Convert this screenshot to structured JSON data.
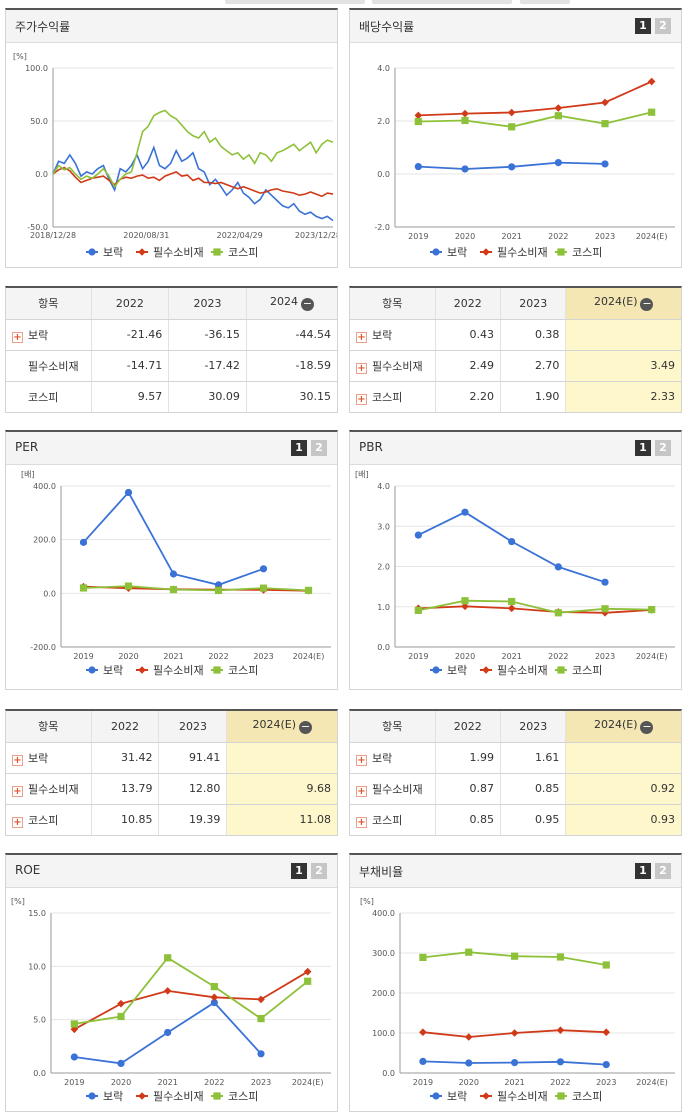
{
  "legend": [
    "보락",
    "필수소비재",
    "코스피"
  ],
  "colors": {
    "s0": "#3a72d6",
    "s1": "#d03a18",
    "s2": "#8ec13a"
  },
  "panels": [
    {
      "title": "주가수익률",
      "tabs": [],
      "chart_data": {
        "type": "line",
        "unit_label": "[%]",
        "ylim": [
          -50,
          100
        ],
        "yticks": [
          "100.0",
          "50.0",
          "0.0",
          "-50.0"
        ],
        "xticks": [
          "2018/12/28",
          "2020/08/31",
          "2022/04/29",
          "2023/12/28"
        ],
        "x": [
          0,
          0.02,
          0.04,
          0.06,
          0.08,
          0.1,
          0.12,
          0.14,
          0.16,
          0.18,
          0.2,
          0.22,
          0.24,
          0.26,
          0.28,
          0.3,
          0.32,
          0.34,
          0.36,
          0.38,
          0.4,
          0.42,
          0.44,
          0.46,
          0.48,
          0.5,
          0.52,
          0.54,
          0.56,
          0.58,
          0.6,
          0.62,
          0.64,
          0.66,
          0.68,
          0.7,
          0.72,
          0.74,
          0.76,
          0.78,
          0.8,
          0.82,
          0.84,
          0.86,
          0.88,
          0.9,
          0.92,
          0.94,
          0.96,
          0.98,
          1.0
        ],
        "series": [
          {
            "name": "보락",
            "values": [
              0,
              12,
              10,
              18,
              10,
              -2,
              2,
              0,
              5,
              8,
              -5,
              -15,
              5,
              2,
              8,
              18,
              5,
              12,
              25,
              8,
              5,
              10,
              22,
              12,
              15,
              20,
              5,
              2,
              -10,
              -5,
              -12,
              -20,
              -15,
              -8,
              -18,
              -22,
              -28,
              -24,
              -15,
              -20,
              -25,
              -30,
              -32,
              -28,
              -35,
              -38,
              -36,
              -40,
              -42,
              -40,
              -44
            ]
          },
          {
            "name": "필수소비재",
            "values": [
              0,
              4,
              6,
              3,
              -3,
              -8,
              -6,
              -4,
              -3,
              -2,
              -6,
              -10,
              -5,
              -3,
              -4,
              -2,
              -1,
              -4,
              -3,
              -6,
              -2,
              0,
              2,
              -2,
              -1,
              -6,
              -4,
              -8,
              -8,
              -9,
              -8,
              -10,
              -12,
              -14,
              -12,
              -14,
              -16,
              -18,
              -17,
              -15,
              -14,
              -16,
              -17,
              -18,
              -20,
              -19,
              -17,
              -19,
              -21,
              -18,
              -19
            ]
          },
          {
            "name": "코스피",
            "values": [
              0,
              8,
              4,
              6,
              0,
              -5,
              -2,
              -4,
              0,
              5,
              -2,
              -12,
              -5,
              0,
              2,
              20,
              40,
              45,
              55,
              58,
              60,
              55,
              52,
              46,
              40,
              36,
              34,
              40,
              30,
              34,
              26,
              22,
              18,
              20,
              14,
              18,
              10,
              20,
              18,
              12,
              20,
              22,
              25,
              28,
              22,
              26,
              30,
              20,
              28,
              32,
              30
            ]
          }
        ]
      }
    },
    {
      "title": "배당수익률",
      "tabs": [
        "1",
        "2"
      ],
      "chart_data": {
        "type": "line",
        "unit_label": "",
        "ylim": [
          -2,
          4
        ],
        "yticks": [
          "4.0",
          "2.0",
          "0.0",
          "-2.0"
        ],
        "xticks": [
          "2019",
          "2020",
          "2021",
          "2022",
          "2023",
          "2024(E)"
        ],
        "series": [
          {
            "name": "보락",
            "values": [
              0.28,
              0.19,
              0.27,
              0.43,
              0.38,
              null
            ]
          },
          {
            "name": "필수소비재",
            "values": [
              2.21,
              2.28,
              2.32,
              2.49,
              2.7,
              3.49
            ]
          },
          {
            "name": "코스피",
            "values": [
              1.98,
              2.02,
              1.78,
              2.2,
              1.9,
              2.33
            ]
          }
        ]
      }
    },
    {
      "title": "PER",
      "tabs": [
        "1",
        "2"
      ],
      "chart_data": {
        "type": "line",
        "unit_label": "[배]",
        "ylim": [
          -200,
          400
        ],
        "yticks": [
          "400.0",
          "200.0",
          "0.0",
          "-200.0"
        ],
        "xticks": [
          "2019",
          "2020",
          "2021",
          "2022",
          "2023",
          "2024(E)"
        ],
        "series": [
          {
            "name": "보락",
            "values": [
              190,
              376,
              72,
              31.42,
              91.41,
              null
            ]
          },
          {
            "name": "필수소비재",
            "values": [
              25,
              19,
              15,
              13.79,
              12.8,
              9.68
            ]
          },
          {
            "name": "코스피",
            "values": [
              20,
              27,
              14,
              10.85,
              19.39,
              11.08
            ]
          }
        ]
      }
    },
    {
      "title": "PBR",
      "tabs": [
        "1",
        "2"
      ],
      "chart_data": {
        "type": "line",
        "unit_label": "[배]",
        "ylim": [
          0,
          4
        ],
        "yticks": [
          "4.0",
          "3.0",
          "2.0",
          "1.0",
          "0.0"
        ],
        "xticks": [
          "2019",
          "2020",
          "2021",
          "2022",
          "2023",
          "2024(E)"
        ],
        "series": [
          {
            "name": "보락",
            "values": [
              2.78,
              3.35,
              2.62,
              1.99,
              1.61,
              null
            ]
          },
          {
            "name": "필수소비재",
            "values": [
              0.96,
              1.01,
              0.96,
              0.87,
              0.85,
              0.92
            ]
          },
          {
            "name": "코스피",
            "values": [
              0.91,
              1.15,
              1.13,
              0.85,
              0.95,
              0.93
            ]
          }
        ]
      }
    },
    {
      "title": "ROE",
      "tabs": [
        "1",
        "2"
      ],
      "chart_data": {
        "type": "line",
        "unit_label": "[%]",
        "ylim": [
          0,
          15
        ],
        "yticks": [
          "15.0",
          "10.0",
          "5.0",
          "0.0"
        ],
        "xticks": [
          "2019",
          "2020",
          "2021",
          "2022",
          "2023",
          "2024(E)"
        ],
        "series": [
          {
            "name": "보락",
            "values": [
              1.5,
              0.9,
              3.8,
              6.6,
              1.8,
              null
            ]
          },
          {
            "name": "필수소비재",
            "values": [
              4.1,
              6.5,
              7.7,
              7.1,
              6.9,
              9.5
            ]
          },
          {
            "name": "코스피",
            "values": [
              4.6,
              5.3,
              10.8,
              8.1,
              5.1,
              8.6
            ]
          }
        ]
      }
    },
    {
      "title": "부채비율",
      "tabs": [
        "1",
        "2"
      ],
      "chart_data": {
        "type": "line",
        "unit_label": "[%]",
        "ylim": [
          0,
          400
        ],
        "yticks": [
          "400.0",
          "300.0",
          "200.0",
          "100.0",
          "0.0"
        ],
        "xticks": [
          "2019",
          "2020",
          "2021",
          "2022",
          "2023",
          "2024(E)"
        ],
        "series": [
          {
            "name": "보락",
            "values": [
              29,
              25,
              26,
              28,
              21,
              null
            ]
          },
          {
            "name": "필수소비재",
            "values": [
              102,
              90,
              100,
              107,
              102,
              null
            ]
          },
          {
            "name": "코스피",
            "values": [
              289,
              302,
              292,
              290,
              270,
              null
            ]
          }
        ]
      }
    }
  ],
  "tables": [
    {
      "headers": [
        "항목",
        "2022",
        "2023",
        "2024"
      ],
      "rows": [
        {
          "name": "보락",
          "plus": true,
          "values": [
            "-21.46",
            "-36.15",
            "-44.54"
          ]
        },
        {
          "name": "필수소비재",
          "plus": false,
          "values": [
            "-14.71",
            "-17.42",
            "-18.59"
          ]
        },
        {
          "name": "코스피",
          "plus": false,
          "values": [
            "9.57",
            "30.09",
            "30.15"
          ]
        }
      ]
    },
    {
      "headers": [
        "항목",
        "2022",
        "2023",
        "2024(E)"
      ],
      "rows": [
        {
          "name": "보락",
          "plus": true,
          "values": [
            "0.43",
            "0.38",
            ""
          ]
        },
        {
          "name": "필수소비재",
          "plus": true,
          "values": [
            "2.49",
            "2.70",
            "3.49"
          ]
        },
        {
          "name": "코스피",
          "plus": true,
          "values": [
            "2.20",
            "1.90",
            "2.33"
          ]
        }
      ]
    },
    {
      "headers": [
        "항목",
        "2022",
        "2023",
        "2024(E)"
      ],
      "rows": [
        {
          "name": "보락",
          "plus": true,
          "values": [
            "31.42",
            "91.41",
            ""
          ]
        },
        {
          "name": "필수소비재",
          "plus": true,
          "values": [
            "13.79",
            "12.80",
            "9.68"
          ]
        },
        {
          "name": "코스피",
          "plus": true,
          "values": [
            "10.85",
            "19.39",
            "11.08"
          ]
        }
      ]
    },
    {
      "headers": [
        "항목",
        "2022",
        "2023",
        "2024(E)"
      ],
      "rows": [
        {
          "name": "보락",
          "plus": true,
          "values": [
            "1.99",
            "1.61",
            ""
          ]
        },
        {
          "name": "필수소비재",
          "plus": true,
          "values": [
            "0.87",
            "0.85",
            "0.92"
          ]
        },
        {
          "name": "코스피",
          "plus": true,
          "values": [
            "0.85",
            "0.95",
            "0.93"
          ]
        }
      ]
    }
  ]
}
